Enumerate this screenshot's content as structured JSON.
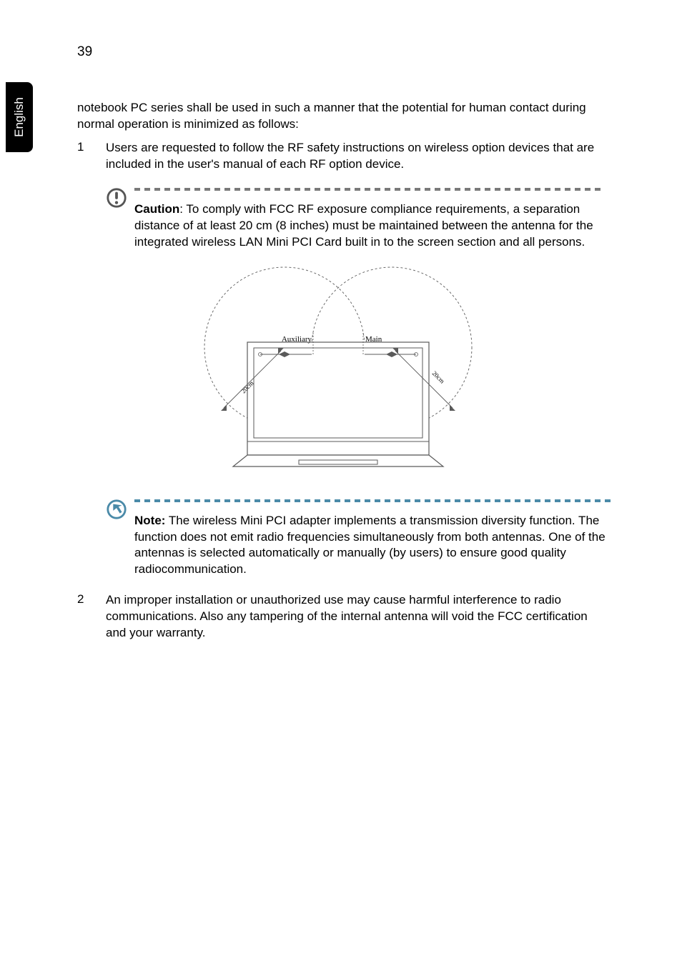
{
  "page_number": "39",
  "side_tab": "English",
  "intro": "notebook PC series shall be used in such a manner that the potential for human contact during normal operation is minimized as follows:",
  "item1_num": "1",
  "item1_text": "Users are requested to follow the RF safety instructions on wireless option devices that are included in the user's manual of each RF option device.",
  "caution_label": "Caution",
  "caution_text": ": To comply with FCC RF exposure compliance requirements, a separation distance of at least 20 cm (8 inches) must be maintained between the antenna for the integrated wireless LAN Mini PCI Card built in to the screen section and all persons.",
  "note_label": "Note:",
  "note_text": " The wireless Mini PCI adapter implements a transmission diversity function. The function does not emit radio frequencies simultaneously from both antennas. One of the antennas is selected automatically or manually (by users) to ensure good quality radiocommunication.",
  "item2_num": "2",
  "item2_text": "An improper installation or unauthorized use may cause harmful interference to radio communications. Also any tampering of the internal antenna will void the FCC certification and your warranty.",
  "colors": {
    "caution_dash": "#7a7a7a",
    "note_dash": "#4a8aa8",
    "icon_stroke": "#555555",
    "note_icon_stroke": "#4a8aa8",
    "figure_stroke": "#5a5a5a",
    "text": "#000000"
  },
  "figure": {
    "aux_label": "Auxiliary",
    "main_label": "Main",
    "dist_left": "20cm",
    "dist_right": "20cm",
    "label_fontsize": 11,
    "dist_fontsize": 9
  }
}
